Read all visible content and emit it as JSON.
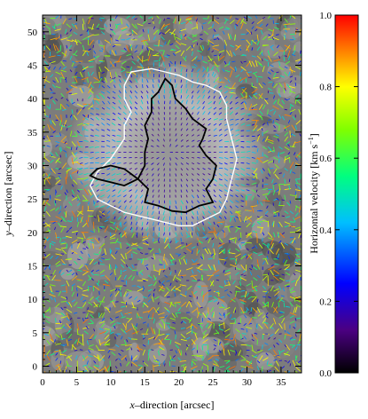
{
  "chart_data": [
    {
      "type": "heatmap",
      "title": "",
      "xlabel_italic": "x",
      "xlabel_rest": "–direction   [arcsec]",
      "ylabel_italic": "y",
      "ylabel_rest": "–direction   [arcsec]",
      "xlim": [
        0,
        38
      ],
      "ylim": [
        -1,
        52.5
      ],
      "xticks": [
        0,
        5,
        10,
        15,
        20,
        25,
        30,
        35
      ],
      "yticks": [
        0,
        5,
        10,
        15,
        20,
        25,
        30,
        35,
        40,
        45,
        50
      ],
      "background": "grayscale continuum intensity with sunspot (umbra dark, penumbra bright)",
      "overlay": "horizontal flow vectors colored by speed",
      "contours": {
        "umbra_boundary_color": "#000000",
        "penumbra_boundary_color": "#ffffff",
        "umbra_outline": [
          [
            16,
            40
          ],
          [
            17,
            41
          ],
          [
            18,
            43
          ],
          [
            19,
            42
          ],
          [
            19.5,
            40
          ],
          [
            21,
            38.5
          ],
          [
            22,
            37
          ],
          [
            24,
            35.5
          ],
          [
            23.5,
            34
          ],
          [
            23,
            33
          ],
          [
            24,
            31.5
          ],
          [
            25.5,
            30
          ],
          [
            25,
            28
          ],
          [
            24,
            26.5
          ],
          [
            25,
            24.5
          ],
          [
            23,
            24
          ],
          [
            22,
            23.5
          ],
          [
            21,
            23
          ],
          [
            19,
            23.2
          ],
          [
            17,
            24
          ],
          [
            15,
            24.5
          ],
          [
            15.5,
            26.5
          ],
          [
            14,
            28
          ],
          [
            12,
            29.5
          ],
          [
            10,
            30
          ],
          [
            8,
            29.5
          ],
          [
            7,
            28.5
          ],
          [
            8,
            28
          ],
          [
            10,
            27.5
          ],
          [
            12,
            27
          ],
          [
            14,
            28
          ],
          [
            15,
            30
          ],
          [
            15,
            32
          ],
          [
            15.5,
            34
          ],
          [
            15,
            36
          ],
          [
            16,
            38
          ]
        ],
        "penumbra_outline": [
          [
            13,
            44
          ],
          [
            16,
            44.5
          ],
          [
            18,
            44
          ],
          [
            20,
            43.5
          ],
          [
            22,
            42.5
          ],
          [
            24,
            42
          ],
          [
            26,
            41
          ],
          [
            27,
            39
          ],
          [
            27,
            37
          ],
          [
            27.5,
            35
          ],
          [
            28,
            33
          ],
          [
            28.5,
            31
          ],
          [
            28,
            29
          ],
          [
            27.5,
            27
          ],
          [
            27,
            25
          ],
          [
            26,
            23
          ],
          [
            24,
            22
          ],
          [
            22,
            21
          ],
          [
            20,
            21
          ],
          [
            18,
            21.5
          ],
          [
            16,
            22
          ],
          [
            14,
            22.5
          ],
          [
            12,
            23
          ],
          [
            10,
            24
          ],
          [
            8,
            25
          ],
          [
            7,
            27
          ],
          [
            8,
            29
          ],
          [
            10,
            31
          ],
          [
            11,
            32.5
          ],
          [
            12,
            34
          ],
          [
            12,
            36
          ],
          [
            13,
            38
          ],
          [
            12,
            40
          ],
          [
            12,
            42
          ]
        ]
      }
    },
    {
      "type": "heatmap",
      "role": "colorbar",
      "ylabel": "Horizontal velocity   [km s",
      "ylabel_exp": "−1",
      "ylabel_close": "]",
      "ylim": [
        0.0,
        1.0
      ],
      "ticks": [
        "0.0",
        "0.2",
        "0.4",
        "0.6",
        "0.8",
        "1.0"
      ],
      "tick_values": [
        0.0,
        0.2,
        0.4,
        0.6,
        0.8,
        1.0
      ],
      "colors": [
        "#000000",
        "#4b0082",
        "#0000ff",
        "#00bfff",
        "#00ff80",
        "#80ff00",
        "#ffff00",
        "#ff8000",
        "#ff0000"
      ]
    }
  ]
}
